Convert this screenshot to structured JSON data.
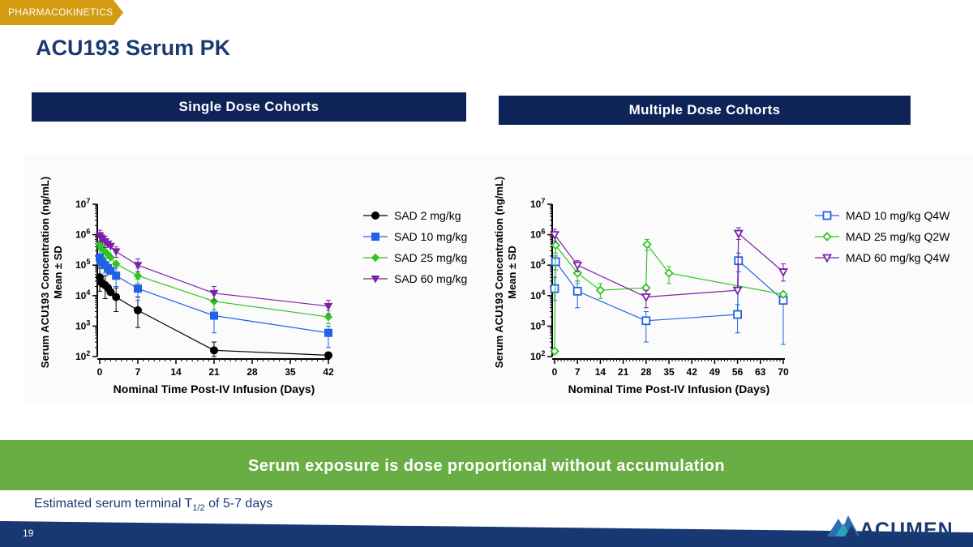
{
  "slide": {
    "tag": "PHARMACOKINETICS",
    "title": "ACU193 Serum PK",
    "left_header": "Single Dose Cohorts",
    "right_header": "Multiple Dose Cohorts",
    "banner": "Serum exposure is dose proportional without accumulation",
    "note_prefix": "Estimated serum terminal T",
    "note_sub": "1/2",
    "note_suffix": " of 5-7 days",
    "page_number": "19",
    "logo_text": "ACUMEN"
  },
  "chart_data": [
    {
      "type": "line",
      "ylabel": "Serum ACU193 Concentration (ng/mL)",
      "ylabel2": "Mean ± SD",
      "xlabel": "Nominal Time Post-IV Infusion (Days)",
      "xticks": [
        0,
        7,
        14,
        21,
        28,
        35,
        42
      ],
      "xlim": [
        0,
        42
      ],
      "ylim": [
        100,
        10000000
      ],
      "yscale": "log",
      "ytick_exponents": [
        2,
        3,
        4,
        5,
        6,
        7
      ],
      "legend_position": "right",
      "series": [
        {
          "name": "SAD 2 mg/kg",
          "color": "#000000",
          "marker": "circle",
          "fill": true,
          "points": [
            [
              0,
              40000
            ],
            [
              0.2,
              28000
            ],
            [
              0.5,
              25000
            ],
            [
              1,
              22000
            ],
            [
              1.5,
              18000
            ],
            [
              2,
              13000
            ],
            [
              3,
              9000
            ],
            [
              7,
              3300
            ],
            [
              21,
              160
            ],
            [
              42,
              110
            ]
          ],
          "err": [
            [
              0,
              14000,
              80000
            ],
            [
              1,
              8000,
              45000
            ],
            [
              3,
              3000,
              18000
            ],
            [
              7,
              900,
              9000
            ],
            [
              21,
              100,
              300
            ]
          ]
        },
        {
          "name": "SAD 10 mg/kg",
          "color": "#1f63e4",
          "marker": "square",
          "fill": true,
          "points": [
            [
              0,
              180000
            ],
            [
              0.2,
              140000
            ],
            [
              0.5,
              120000
            ],
            [
              1,
              100000
            ],
            [
              1.5,
              80000
            ],
            [
              2,
              65000
            ],
            [
              3,
              45000
            ],
            [
              7,
              17000
            ],
            [
              21,
              2200
            ],
            [
              42,
              600
            ]
          ],
          "err": [
            [
              0,
              90000,
              350000
            ],
            [
              1,
              55000,
              170000
            ],
            [
              3,
              20000,
              80000
            ],
            [
              7,
              7000,
              35000
            ],
            [
              21,
              600,
              6000
            ],
            [
              42,
              200,
              1000
            ]
          ]
        },
        {
          "name": "SAD 25 mg/kg",
          "color": "#2ec61e",
          "marker": "diamond",
          "fill": true,
          "points": [
            [
              0,
              500000
            ],
            [
              0.2,
              400000
            ],
            [
              0.5,
              330000
            ],
            [
              1,
              280000
            ],
            [
              1.5,
              230000
            ],
            [
              2,
              180000
            ],
            [
              3,
              110000
            ],
            [
              7,
              45000
            ],
            [
              21,
              6500
            ],
            [
              42,
              2000
            ]
          ],
          "err": [
            [
              0,
              300000,
              800000
            ],
            [
              1,
              170000,
              450000
            ],
            [
              7,
              25000,
              80000
            ],
            [
              21,
              3500,
              12000
            ],
            [
              42,
              1200,
              3200
            ]
          ]
        },
        {
          "name": "SAD 60 mg/kg",
          "color": "#7d1fa8",
          "marker": "triangle-down",
          "fill": true,
          "points": [
            [
              0,
              950000
            ],
            [
              0.2,
              800000
            ],
            [
              0.5,
              700000
            ],
            [
              1,
              600000
            ],
            [
              1.5,
              500000
            ],
            [
              2,
              420000
            ],
            [
              3,
              280000
            ],
            [
              7,
              100000
            ],
            [
              21,
              12000
            ],
            [
              42,
              4500
            ]
          ],
          "err": [
            [
              0,
              600000,
              1400000
            ],
            [
              1,
              380000,
              900000
            ],
            [
              3,
              180000,
              400000
            ],
            [
              7,
              60000,
              160000
            ],
            [
              21,
              7000,
              20000
            ],
            [
              42,
              2500,
              7000
            ]
          ]
        }
      ]
    },
    {
      "type": "line",
      "ylabel": "Serum ACU193 Concentration (ng/mL)",
      "ylabel2": "Mean ± SD",
      "xlabel": "Nominal Time Post-IV Infusion (Days)",
      "xticks": [
        0,
        7,
        14,
        21,
        28,
        35,
        42,
        49,
        56,
        63,
        70
      ],
      "xlim": [
        0,
        70
      ],
      "ylim": [
        100,
        10000000
      ],
      "yscale": "log",
      "ytick_exponents": [
        2,
        3,
        4,
        5,
        6,
        7
      ],
      "legend_position": "top-right",
      "series": [
        {
          "name": "MAD 10 mg/kg Q4W",
          "color": "#1f63e4",
          "marker": "square",
          "fill": false,
          "points": [
            [
              0,
              17000
            ],
            [
              0.3,
              130000
            ],
            [
              7,
              14000
            ],
            [
              28,
              1500
            ],
            [
              56,
              2400
            ],
            [
              56.3,
              140000
            ],
            [
              70,
              7000
            ]
          ],
          "err": [
            [
              0,
              7000,
              40000
            ],
            [
              0.3,
              70000,
              200000
            ],
            [
              7,
              4000,
              30000
            ],
            [
              28,
              300,
              3000
            ],
            [
              56,
              600,
              5000
            ],
            [
              56.3,
              60000,
              250000
            ],
            [
              70,
              250,
              13000
            ]
          ]
        },
        {
          "name": "MAD 25 mg/kg Q2W",
          "color": "#2ec61e",
          "marker": "diamond",
          "fill": false,
          "points": [
            [
              0,
              150
            ],
            [
              0.3,
              450000
            ],
            [
              7,
              55000
            ],
            [
              14,
              15000
            ],
            [
              28,
              18000
            ],
            [
              28.3,
              480000
            ],
            [
              35,
              55000
            ],
            [
              70,
              11000
            ]
          ],
          "err": [
            [
              0.3,
              250000,
              800000
            ],
            [
              7,
              25000,
              100000
            ],
            [
              14,
              8000,
              25000
            ],
            [
              28.3,
              300000,
              700000
            ],
            [
              35,
              25000,
              90000
            ]
          ]
        },
        {
          "name": "MAD 60 mg/kg Q4W",
          "color": "#7d1fa8",
          "marker": "triangle-down",
          "fill": false,
          "points": [
            [
              0,
              1000000
            ],
            [
              7,
              100000
            ],
            [
              28,
              9000
            ],
            [
              56,
              15000
            ],
            [
              56.3,
              1100000
            ],
            [
              70,
              60000
            ]
          ],
          "err": [
            [
              0,
              600000,
              1500000
            ],
            [
              7,
              60000,
              140000
            ],
            [
              28,
              4000,
              15000
            ],
            [
              56.3,
              700000,
              1700000
            ],
            [
              70,
              30000,
              110000
            ]
          ]
        }
      ]
    }
  ]
}
